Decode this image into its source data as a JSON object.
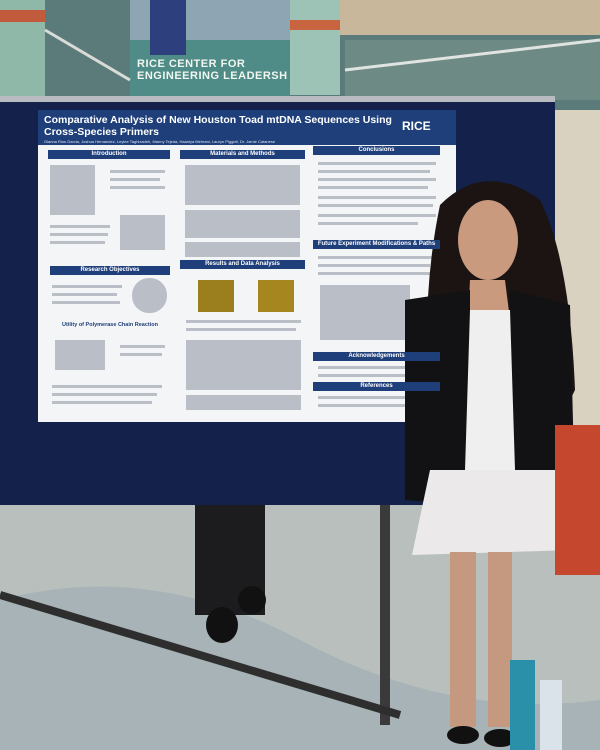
{
  "sign": {
    "line1": "RICE CENTER FOR",
    "line2": "ENGINEERING LEADERSH"
  },
  "poster": {
    "title": "Comparative Analysis of New Houston Toad mtDNA Sequences Using Cross-Species Primers",
    "authors": "Gianna Rios Garcia, Joshua Hernandez, Leylee Taghizadeh, Manny Tejeda, Haaniya Mehrani, Lauryn Piggott, Dr. Jamie Catanese",
    "logo": "RICE",
    "sections": [
      "Introduction",
      "Materials and Methods",
      "Conclusions",
      "Research Objectives",
      "Utility of Polymerase Chain Reaction",
      "Results and Data Analysis",
      "Future Experiment Modifications & Paths",
      "Acknowledgements",
      "References"
    ]
  }
}
